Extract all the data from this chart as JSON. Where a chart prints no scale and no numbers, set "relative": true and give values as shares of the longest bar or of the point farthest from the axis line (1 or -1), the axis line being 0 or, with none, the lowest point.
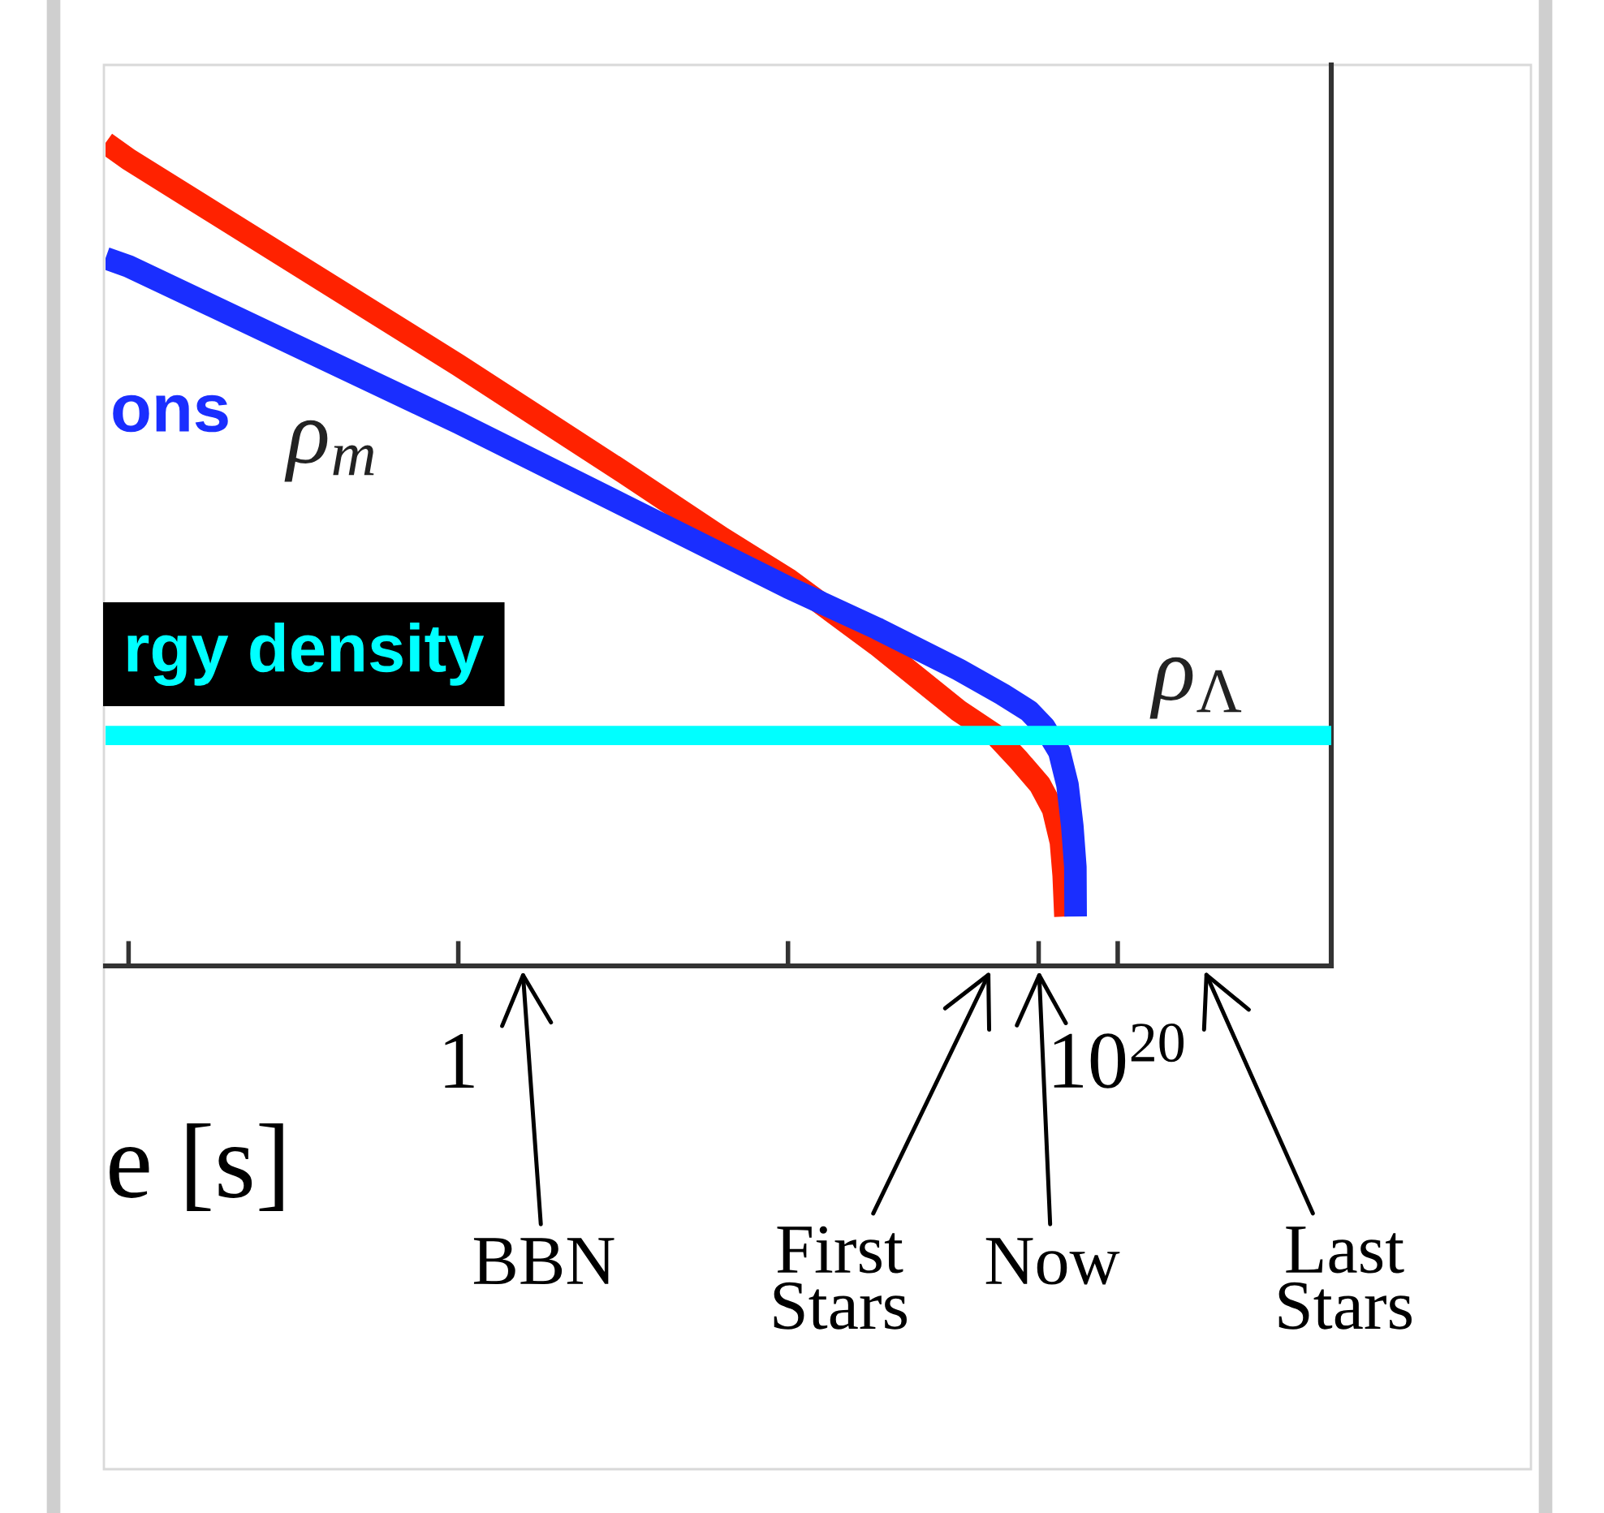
{
  "chart_data": {
    "type": "line",
    "relative": true,
    "log": "x",
    "xlabel": "e [s]",
    "xlim": [
      2e-11,
      3e+26
    ],
    "xticks": [
      {
        "value": 1e-10,
        "label": null
      },
      1,
      {
        "value": 10000000000.0,
        "label": null
      },
      {
        "value": 4e+17,
        "label": null
      },
      {
        "value": 1e+20,
        "label": "10$^{20}$"
      }
    ],
    "series": [
      {
        "color": "#ff2200",
        "x": [
          2e-11,
          1e-10,
          1,
          100000.0,
          100000000.0,
          10000000000.0,
          5000000000000.0,
          1500000000000000.0,
          2e+16,
          1e+17,
          4.4e+17,
          1.1e+18,
          1.9e+18,
          2.3e+18,
          2.6e+18
        ],
        "values": [
          1.0,
          0.98,
          0.73,
          0.6,
          0.52,
          0.47,
          0.39,
          0.31,
          0.28,
          0.25,
          0.22,
          0.19,
          0.15,
          0.11,
          0.06
        ]
      },
      {
        "name": "ons",
        "color": "#1a2eff",
        "x": [
          2e-11,
          1e-10,
          1,
          100000.0,
          10000000000.0,
          5000000000000.0,
          1500000000000000.0,
          3.2e+16,
          2e+17,
          6e+17,
          1.7e+18,
          3e+18,
          4.2e+18,
          5.2e+18,
          5.3e+18
        ],
        "values": [
          0.86,
          0.85,
          0.66,
          0.56,
          0.46,
          0.41,
          0.36,
          0.33,
          0.31,
          0.29,
          0.26,
          0.22,
          0.17,
          0.12,
          0.06
        ]
      },
      {
        "name": "rgy density",
        "color": "#00ffff",
        "x": [
          2e-11,
          3e+26
        ],
        "values": [
          0.28,
          0.28
        ]
      }
    ],
    "annotations": [
      "ρ$_{m}$",
      "ρ$_{Λ}$",
      "BBN",
      "First\nStars",
      "Now",
      "Last\nStars"
    ],
    "line_style": "solid",
    "marker": "none",
    "grid": false,
    "legend": false
  }
}
